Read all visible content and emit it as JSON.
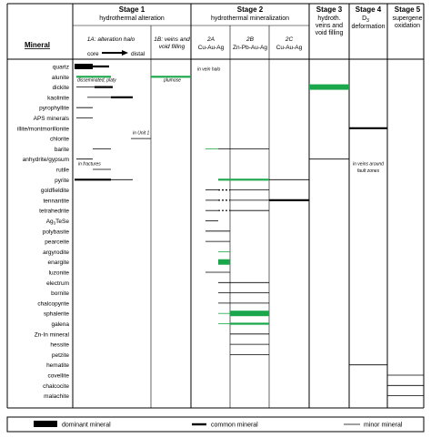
{
  "header": {
    "mineral_label": "Mineral",
    "stages": [
      {
        "title": "Stage 1",
        "subtitle": [
          "hydrothermal alteration"
        ]
      },
      {
        "title": "Stage 2",
        "subtitle": [
          "hydrothermal mineralization"
        ]
      },
      {
        "title": "Stage 3",
        "subtitle": [
          "hydroth.",
          "veins and",
          "void filling"
        ]
      },
      {
        "title": "Stage 4",
        "subtitle": [
          "D",
          "deformation"
        ],
        "subscript": "3"
      },
      {
        "title": "Stage 5",
        "subtitle": [
          "supergene",
          "oxidation"
        ]
      }
    ],
    "substages": {
      "s1a": "1A: alteration halo",
      "s1b": [
        "1B: veins and",
        "void filling"
      ],
      "s2a": [
        "2A",
        "Cu-Au-Ag"
      ],
      "s2b": [
        "2B",
        "Zn-Pb-Au-Ag"
      ],
      "s2c": [
        "2C",
        "Cu-Au-Ag"
      ]
    },
    "core_label": "core",
    "distal_label": "distal"
  },
  "minerals": [
    "quartz",
    "alunite",
    "dickite",
    "kaolinite",
    "pyrophyllite",
    "APS minerals",
    "illite/montmorillonite",
    "chlorite",
    "barite",
    "anhydrite/gypsum",
    "rutile",
    "pyrite",
    "goldfieldite",
    "tennantite",
    "tetrahedrite",
    "Ag3TeSe",
    "polybasite",
    "pearceite",
    "argyrodite",
    "enargite",
    "luzonite",
    "electrum",
    "bornite",
    "chalcopyrite",
    "sphalerite",
    "galena",
    "Zn-In mineral",
    "hessite",
    "petzite",
    "hematite",
    "covellite",
    "chalcocite",
    "malachite"
  ],
  "annotations": {
    "disseminated": "disseminated, platy",
    "plumose": "plumose",
    "in_vein_halo": "in vein halo",
    "in_unit1": "in Unit 1",
    "in_fractures": "in fractures",
    "fault_zones": [
      "in veins around",
      "fault zones"
    ]
  },
  "legend": {
    "dominant": "dominant mineral",
    "common": "common mineral",
    "minor": "minor mineral"
  },
  "colors": {
    "grid": "#000000",
    "accent_green": "#1aa64a",
    "dominant": "#000000"
  }
}
